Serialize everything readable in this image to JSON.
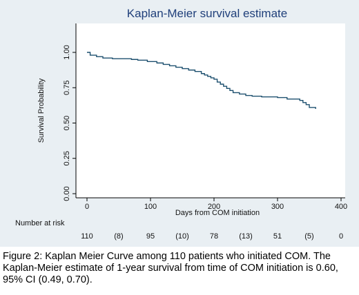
{
  "colors": {
    "panel_bg": "#e9eff3",
    "plot_bg": "#ffffff",
    "curve": "#1c4f6e",
    "title": "#1f3f7a",
    "text": "#111111"
  },
  "chart_data": {
    "type": "line",
    "title": "Kaplan-Meier survival estimate",
    "xlabel": "Days from COM initiation",
    "ylabel": "Survival Probability",
    "xlim": [
      0,
      400
    ],
    "ylim": [
      0,
      1
    ],
    "x_ticks": [
      0,
      100,
      200,
      300,
      400
    ],
    "x_tick_labels": [
      "0",
      "100",
      "200",
      "300",
      "400"
    ],
    "y_ticks": [
      0,
      0.25,
      0.5,
      0.75,
      1
    ],
    "y_tick_labels": [
      "0.00",
      "0.25",
      "0.50",
      "0.75",
      "1.00"
    ],
    "grid": false,
    "step": true,
    "series": [
      {
        "x": [
          0,
          5,
          15,
          25,
          40,
          70,
          80,
          95,
          110,
          120,
          130,
          140,
          150,
          160,
          170,
          180,
          185,
          190,
          195,
          200,
          205,
          210,
          215,
          220,
          225,
          230,
          240,
          250,
          260,
          275,
          300,
          315,
          335,
          340,
          345,
          350,
          360
        ],
        "y": [
          1.0,
          0.98,
          0.97,
          0.96,
          0.955,
          0.95,
          0.945,
          0.935,
          0.925,
          0.915,
          0.905,
          0.895,
          0.885,
          0.875,
          0.865,
          0.85,
          0.84,
          0.83,
          0.82,
          0.81,
          0.79,
          0.775,
          0.76,
          0.745,
          0.73,
          0.715,
          0.705,
          0.695,
          0.69,
          0.685,
          0.68,
          0.67,
          0.66,
          0.645,
          0.63,
          0.61,
          0.6
        ]
      }
    ],
    "risk_table": {
      "label": "Number at risk",
      "values": [
        {
          "x": 0,
          "text": "110"
        },
        {
          "x": 50,
          "text": "(8)"
        },
        {
          "x": 100,
          "text": "95"
        },
        {
          "x": 150,
          "text": "(10)"
        },
        {
          "x": 200,
          "text": "78"
        },
        {
          "x": 250,
          "text": "(13)"
        },
        {
          "x": 300,
          "text": "51"
        },
        {
          "x": 350,
          "text": "(5)"
        },
        {
          "x": 400,
          "text": "0"
        }
      ]
    }
  },
  "caption": "Figure 2: Kaplan Meier Curve among 110 patients who initiated COM. The Kaplan-Meier estimate of 1-year survival from time of COM initiation is 0.60, 95% CI (0.49, 0.70)."
}
